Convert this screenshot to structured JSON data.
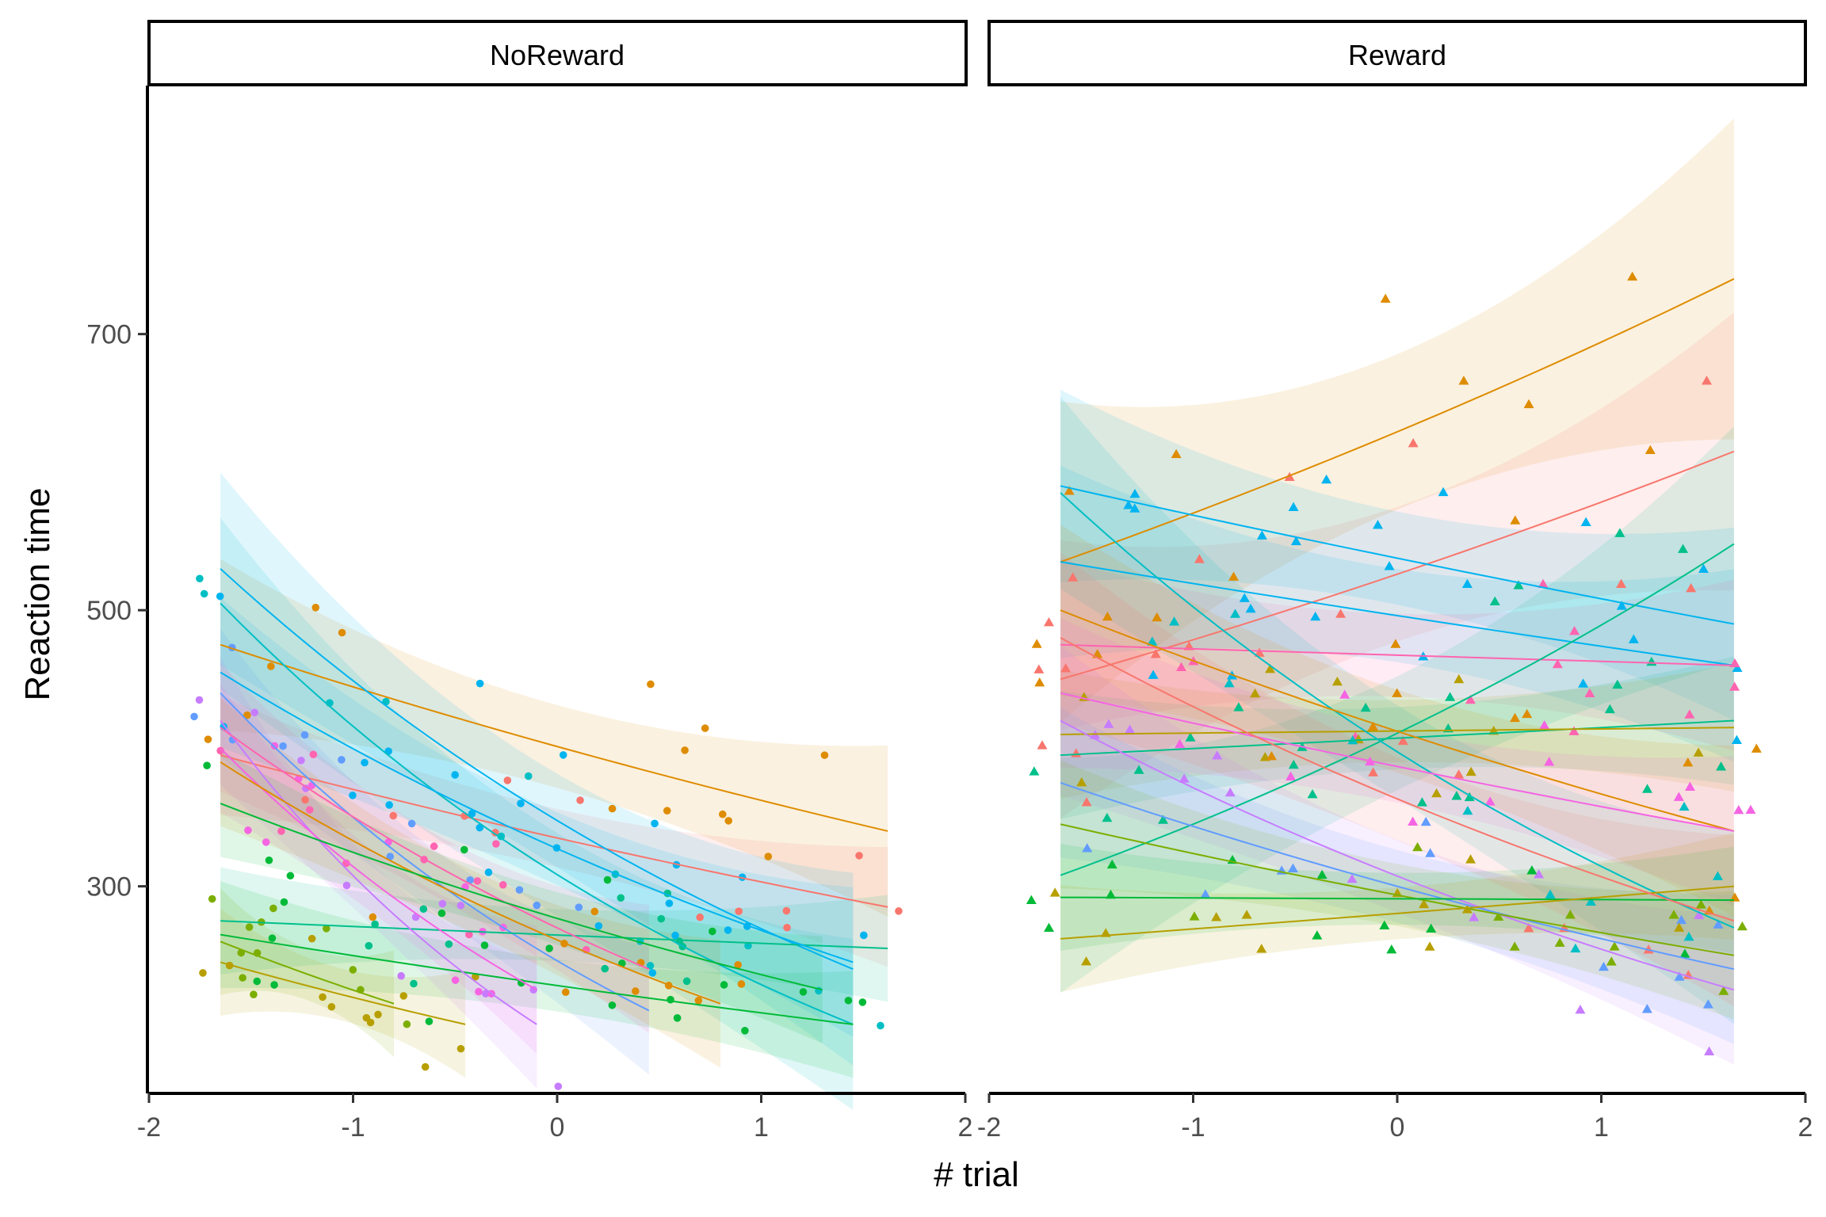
{
  "chart_data": {
    "type": "scatter",
    "facets": [
      "NoReward",
      "Reward"
    ],
    "xlabel": "# trial",
    "ylabel": "Reaction time",
    "xlim": [
      -2,
      2
    ],
    "ylim": [
      150,
      880
    ],
    "x_ticks": [
      "-2",
      "-1",
      "0",
      "1",
      "2"
    ],
    "y_ticks": [
      "300",
      "500",
      "700"
    ],
    "y_tick_values": [
      300,
      500,
      700
    ],
    "grid": false,
    "legend": "none",
    "markers": {
      "NoReward": "circle",
      "Reward": "triangle"
    },
    "colors": [
      "#F8766D",
      "#DE8C00",
      "#B79F00",
      "#7CAE00",
      "#00BA38",
      "#00C08B",
      "#00BFC4",
      "#00B4F0",
      "#619CFF",
      "#C77CFF",
      "#F564E3",
      "#FF64B0"
    ],
    "panels": [
      {
        "label": "NoReward",
        "fits": [
          {
            "color": "#DE8C00",
            "x_range": [
              -1.65,
              1.62
            ],
            "y_start": 475,
            "y_end": 340,
            "se": 40
          },
          {
            "color": "#F8766D",
            "x_range": [
              -1.65,
              1.62
            ],
            "y_start": 395,
            "y_end": 285,
            "se": 28
          },
          {
            "color": "#00B4F0",
            "x_range": [
              -1.65,
              1.45
            ],
            "y_start": 530,
            "y_end": 240,
            "se": 45
          },
          {
            "color": "#00BFC4",
            "x_range": [
              -1.65,
              1.45
            ],
            "y_start": 505,
            "y_end": 200,
            "se": 40
          },
          {
            "color": "#619CFF",
            "x_range": [
              -1.65,
              0.45
            ],
            "y_start": 440,
            "y_end": 210,
            "se": 30
          },
          {
            "color": "#00C08B",
            "x_range": [
              -1.65,
              1.62
            ],
            "y_start": 275,
            "y_end": 255,
            "se": 25
          },
          {
            "color": "#00BA38",
            "x_range": [
              -1.65,
              1.45
            ],
            "y_start": 265,
            "y_end": 200,
            "se": 25
          },
          {
            "color": "#7CAE00",
            "x_range": [
              -1.65,
              -0.8
            ],
            "y_start": 260,
            "y_end": 215,
            "se": 25
          },
          {
            "color": "#B79F00",
            "x_range": [
              -1.65,
              -0.45
            ],
            "y_start": 245,
            "y_end": 200,
            "se": 25
          },
          {
            "color": "#C77CFF",
            "x_range": [
              -1.65,
              -0.1
            ],
            "y_start": 420,
            "y_end": 200,
            "se": 30
          },
          {
            "color": "#F564E3",
            "x_range": [
              -1.65,
              -0.1
            ],
            "y_start": 400,
            "y_end": 225,
            "se": 30
          },
          {
            "color": "#FF64B0",
            "x_range": [
              -1.65,
              0.45
            ],
            "y_start": 415,
            "y_end": 240,
            "se": 30
          },
          {
            "color": "#00B4F0",
            "x_range": [
              -1.65,
              1.45
            ],
            "y_start": 455,
            "y_end": 245,
            "se": 35
          },
          {
            "color": "#DE8C00",
            "x_range": [
              -1.65,
              0.8
            ],
            "y_start": 390,
            "y_end": 215,
            "se": 30
          },
          {
            "color": "#00BA38",
            "x_range": [
              -1.65,
              1.3
            ],
            "y_start": 360,
            "y_end": 225,
            "se": 25
          }
        ]
      },
      {
        "label": "Reward",
        "fits": [
          {
            "color": "#DE8C00",
            "x_range": [
              -1.65,
              1.65
            ],
            "y_start": 535,
            "y_end": 740,
            "se": 75
          },
          {
            "color": "#F8766D",
            "x_range": [
              -1.65,
              1.65
            ],
            "y_start": 450,
            "y_end": 615,
            "se": 65
          },
          {
            "color": "#00B4F0",
            "x_range": [
              -1.65,
              1.65
            ],
            "y_start": 590,
            "y_end": 490,
            "se": 45
          },
          {
            "color": "#00B4F0",
            "x_range": [
              -1.65,
              1.65
            ],
            "y_start": 535,
            "y_end": 460,
            "se": 45
          },
          {
            "color": "#FF64B0",
            "x_range": [
              -1.65,
              1.65
            ],
            "y_start": 475,
            "y_end": 460,
            "se": 40
          },
          {
            "color": "#00C08B",
            "x_range": [
              -1.65,
              1.65
            ],
            "y_start": 395,
            "y_end": 420,
            "se": 30
          },
          {
            "color": "#B79F00",
            "x_range": [
              -1.65,
              1.65
            ],
            "y_start": 410,
            "y_end": 415,
            "se": 30
          },
          {
            "color": "#00C08B",
            "x_range": [
              -1.65,
              1.65
            ],
            "y_start": 308,
            "y_end": 548,
            "se": 55
          },
          {
            "color": "#00BFC4",
            "x_range": [
              -1.65,
              1.65
            ],
            "y_start": 585,
            "y_end": 270,
            "se": 45
          },
          {
            "color": "#DE8C00",
            "x_range": [
              -1.65,
              1.65
            ],
            "y_start": 500,
            "y_end": 340,
            "se": 40
          },
          {
            "color": "#F564E3",
            "x_range": [
              -1.65,
              1.65
            ],
            "y_start": 440,
            "y_end": 340,
            "se": 35
          },
          {
            "color": "#C77CFF",
            "x_range": [
              -1.65,
              1.65
            ],
            "y_start": 420,
            "y_end": 225,
            "se": 35
          },
          {
            "color": "#619CFF",
            "x_range": [
              -1.65,
              1.65
            ],
            "y_start": 375,
            "y_end": 240,
            "se": 35
          },
          {
            "color": "#7CAE00",
            "x_range": [
              -1.65,
              1.65
            ],
            "y_start": 345,
            "y_end": 250,
            "se": 30
          },
          {
            "color": "#00BA38",
            "x_range": [
              -1.65,
              1.65
            ],
            "y_start": 292,
            "y_end": 290,
            "se": 25
          },
          {
            "color": "#B79F00",
            "x_range": [
              -1.65,
              1.65
            ],
            "y_start": 262,
            "y_end": 300,
            "se": 25
          },
          {
            "color": "#F8766D",
            "x_range": [
              -1.65,
              1.65
            ],
            "y_start": 480,
            "y_end": 275,
            "se": 40
          }
        ]
      }
    ]
  }
}
